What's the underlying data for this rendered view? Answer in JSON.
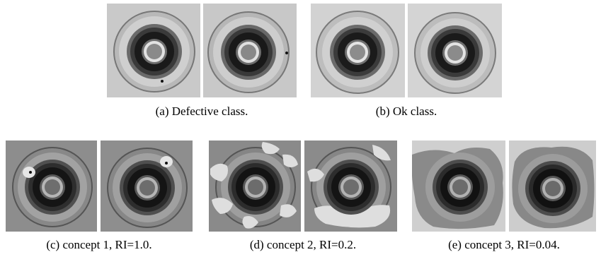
{
  "figure": {
    "top_row": [
      {
        "caption": "(a)  Defective class."
      },
      {
        "caption": "(b)  Ok class."
      }
    ],
    "bottom_row": [
      {
        "caption": "(c)  concept 1, RI=1.0."
      },
      {
        "caption": "(d)  concept 2, RI=0.2."
      },
      {
        "caption": "(e)  concept 3, RI=0.04."
      }
    ]
  }
}
